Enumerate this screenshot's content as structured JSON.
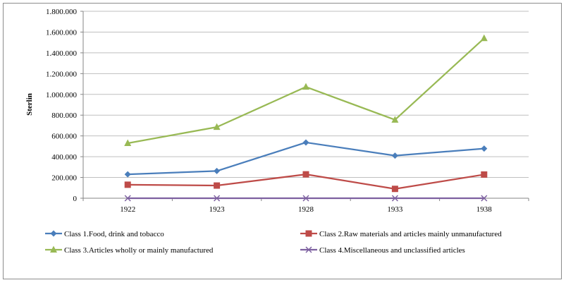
{
  "chart_data": {
    "type": "line",
    "title": "",
    "xlabel": "",
    "ylabel": "Sterlin",
    "categories": [
      "1922",
      "1923",
      "1928",
      "1933",
      "1938"
    ],
    "ylim": [
      0,
      1800000
    ],
    "yticks": [
      0,
      200000,
      400000,
      600000,
      800000,
      1000000,
      1200000,
      1400000,
      1600000,
      1800000
    ],
    "ytick_labels": [
      "0",
      "200.000",
      "400.000",
      "600.000",
      "800.000",
      "1.000.000",
      "1.200.000",
      "1.400.000",
      "1.600.000",
      "1.800.000"
    ],
    "grid": true,
    "legend_position": "bottom",
    "series": [
      {
        "name": "Class 1.Food, drink and tobacco",
        "color": "#4a7ebb",
        "marker": "diamond",
        "values": [
          230000,
          262000,
          537000,
          410000,
          478000
        ]
      },
      {
        "name": "Class 2.Raw materials and articles mainly unmanufactured",
        "color": "#be4b48",
        "marker": "square",
        "values": [
          130000,
          122000,
          230000,
          90000,
          228000
        ]
      },
      {
        "name": "Class 3.Articles wholly or mainly manufactured",
        "color": "#98b954",
        "marker": "triangle",
        "values": [
          530000,
          685000,
          1072000,
          755000,
          1540000
        ]
      },
      {
        "name": "Class 4.Miscellaneous and unclassified articles",
        "color": "#7d60a0",
        "marker": "x",
        "values": [
          0,
          0,
          0,
          0,
          0
        ]
      }
    ]
  }
}
